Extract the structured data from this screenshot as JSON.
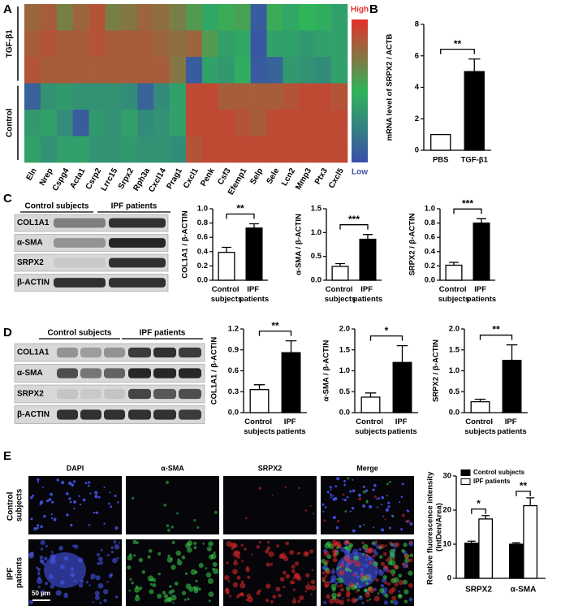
{
  "panel_labels": [
    "A",
    "B",
    "C",
    "D",
    "E"
  ],
  "chart_data": [
    {
      "type": "heatmap",
      "categories": [
        "Eln",
        "Nrep",
        "Cspg4",
        "Acta1",
        "Csrp2",
        "Lrrc15",
        "Srpx2",
        "Rph3a",
        "Cxcl14",
        "Prag1",
        "Cxcl1",
        "Penk",
        "Csf3",
        "Efemp1",
        "Selp",
        "Sele",
        "Lcn2",
        "Mmp3",
        "Ptx3",
        "Cxcl5"
      ],
      "groups": [
        {
          "name": "TGF-β1",
          "rows": [
            [
              0.9,
              1,
              0.6,
              0.9,
              1.1,
              0.6,
              0.7,
              0.9,
              0.8,
              0.6,
              0.3,
              -0.2,
              0.1,
              0.2,
              -1.3,
              0.1,
              -0.2,
              0,
              -0.1,
              -0.3
            ],
            [
              1,
              1.1,
              1,
              1,
              1.1,
              1,
              1,
              1,
              0.9,
              0.8,
              0.9,
              0.3,
              -0.3,
              -0.2,
              -1.4,
              -0.3,
              -0.3,
              -0.4,
              -0.3,
              -0.3
            ],
            [
              1.1,
              1,
              1,
              1,
              1,
              1,
              1,
              1,
              1,
              0.7,
              -1.3,
              -0.3,
              -0.4,
              -0.1,
              -1.3,
              -1.2,
              -0.4,
              -0.5,
              -0.6,
              -0.3
            ]
          ]
        },
        {
          "name": "Control",
          "rows": [
            [
              -1.2,
              -0.5,
              -0.4,
              -0.5,
              -0.5,
              -0.5,
              -0.6,
              -1.2,
              -0.6,
              -0.3,
              1.2,
              1.2,
              1,
              1,
              1,
              1,
              1.1,
              1.2,
              1.2,
              1.1
            ],
            [
              -0.4,
              -0.3,
              -0.6,
              -1.3,
              -0.4,
              -0.5,
              -0.3,
              -0.6,
              -0.5,
              -0.3,
              1.2,
              1.2,
              1.2,
              1.1,
              1,
              1.2,
              1.2,
              1.2,
              1.2,
              1.2
            ],
            [
              -0.3,
              -0.5,
              -0.3,
              -0.3,
              -0.5,
              -0.5,
              -0.4,
              -0.5,
              -0.5,
              -0.6,
              1.1,
              1.2,
              1.2,
              1.2,
              1.2,
              1.2,
              1.2,
              1.2,
              1.2,
              1.2
            ]
          ]
        }
      ],
      "zlim": [
        -1.5,
        1.5
      ],
      "colorscale": [
        "#3a4fa8",
        "#2fb45a",
        "#e3302b"
      ],
      "colorbar_labels": {
        "high": "High",
        "low": "Low"
      }
    },
    {
      "type": "bar",
      "ylabel": "mRNA level of SRPX2 / ACTB",
      "categories": [
        "PBS",
        "TGF-β1"
      ],
      "values": [
        1,
        5.0
      ],
      "errors": [
        null,
        0.8
      ],
      "colors": [
        "#ffffff",
        "#000000"
      ],
      "ylim": [
        0,
        8
      ],
      "yticks": [
        0,
        2,
        4,
        6,
        8
      ],
      "significance": "**"
    },
    {
      "type": "bar",
      "ylabel": "COL1A1 / β-ACTIN",
      "categories": [
        "Control subjects",
        "IPF patients"
      ],
      "values": [
        0.39,
        0.73
      ],
      "errors": [
        0.07,
        0.06
      ],
      "colors": [
        "#ffffff",
        "#000000"
      ],
      "ylim": [
        0,
        1.0
      ],
      "yticks": [
        {
          "value": 0,
          "label": "0.0"
        },
        0.2,
        0.4,
        0.6,
        0.8,
        {
          "value": 1,
          "label": "1.0"
        }
      ],
      "significance": "**"
    },
    {
      "type": "bar",
      "ylabel": "α-SMA / β-ACTIN",
      "categories": [
        "Control subjects",
        "IPF patients"
      ],
      "values": [
        0.29,
        0.86
      ],
      "errors": [
        0.06,
        0.1
      ],
      "colors": [
        "#ffffff",
        "#000000"
      ],
      "ylim": [
        0,
        1.5
      ],
      "yticks": [
        {
          "value": 0,
          "label": "0.0"
        },
        0.5,
        {
          "value": 1,
          "label": "1.0"
        },
        1.5
      ],
      "significance": "***"
    },
    {
      "type": "bar",
      "ylabel": "SRPX2 / β-ACTIN",
      "categories": [
        "Control subjects",
        "IPF patients"
      ],
      "values": [
        0.21,
        0.8
      ],
      "errors": [
        0.04,
        0.06
      ],
      "colors": [
        "#ffffff",
        "#000000"
      ],
      "ylim": [
        0,
        1.0
      ],
      "yticks": [
        {
          "value": 0,
          "label": "0.0"
        },
        0.2,
        0.4,
        0.6,
        0.8,
        {
          "value": 1,
          "label": "1.0"
        }
      ],
      "significance": "***"
    },
    {
      "type": "bar",
      "ylabel": "COL1A1 / β-ACTIN",
      "categories": [
        "Control subjects",
        "IPF patients"
      ],
      "values": [
        0.33,
        0.86
      ],
      "errors": [
        0.07,
        0.17
      ],
      "colors": [
        "#ffffff",
        "#000000"
      ],
      "ylim": [
        0,
        1.2
      ],
      "yticks": [
        {
          "value": 0,
          "label": "0.0"
        },
        0.3,
        0.6,
        0.9,
        1.2
      ],
      "significance": "**"
    },
    {
      "type": "bar",
      "ylabel": "α-SMA / β-ACTIN",
      "categories": [
        "Control subjects",
        "IPF patients"
      ],
      "values": [
        0.37,
        1.2
      ],
      "errors": [
        0.1,
        0.4
      ],
      "colors": [
        "#ffffff",
        "#000000"
      ],
      "ylim": [
        0,
        2.0
      ],
      "yticks": [
        {
          "value": 0,
          "label": "0.0"
        },
        0.5,
        {
          "value": 1,
          "label": "1.0"
        },
        1.5,
        {
          "value": 2,
          "label": "2.0"
        }
      ],
      "significance": "*"
    },
    {
      "type": "bar",
      "ylabel": "SRPX2 / β-ACTIN",
      "categories": [
        "Control subjects",
        "IPF patients"
      ],
      "values": [
        0.26,
        1.25
      ],
      "errors": [
        0.06,
        0.37
      ],
      "colors": [
        "#ffffff",
        "#000000"
      ],
      "ylim": [
        0,
        2.0
      ],
      "yticks": [
        {
          "value": 0,
          "label": "0.0"
        },
        0.5,
        {
          "value": 1,
          "label": "1.0"
        },
        1.5,
        {
          "value": 2,
          "label": "2.0"
        }
      ],
      "significance": "**"
    },
    {
      "type": "grouped_bar",
      "ylabel": "Relative fluorescence intensity (IntDen/Area)",
      "categories": [
        "SRPX2",
        "α-SMA"
      ],
      "series": [
        {
          "name": "Control subjects",
          "color": "#000000",
          "values": [
            10.3,
            10.0
          ],
          "errors": [
            0.6,
            0.4
          ]
        },
        {
          "name": "IPF patients",
          "color": "#ffffff",
          "values": [
            17.4,
            21.3
          ],
          "errors": [
            1.0,
            2.3
          ]
        }
      ],
      "ylim": [
        0,
        30
      ],
      "yticks": [
        0,
        10,
        20,
        30
      ],
      "significance": [
        "*",
        "**"
      ],
      "legend": "upper-left"
    }
  ],
  "blots": [
    {
      "headers": [
        "Control subjects",
        "IPF patients"
      ],
      "rows": [
        "COL1A1",
        "α-SMA",
        "SRPX2",
        "β-ACTIN"
      ]
    },
    {
      "headers": [
        "Control subjects",
        "IPF patients"
      ],
      "rows": [
        "COL1A1",
        "α-SMA",
        "SRPX2",
        "β-ACTIN"
      ]
    }
  ],
  "micrographs": {
    "columns": [
      "DAPI",
      "α-SMA",
      "SRPX2",
      "Merge"
    ],
    "rows": [
      "Control subjects",
      "IPF patients"
    ],
    "scale_bar": "50 μm"
  }
}
